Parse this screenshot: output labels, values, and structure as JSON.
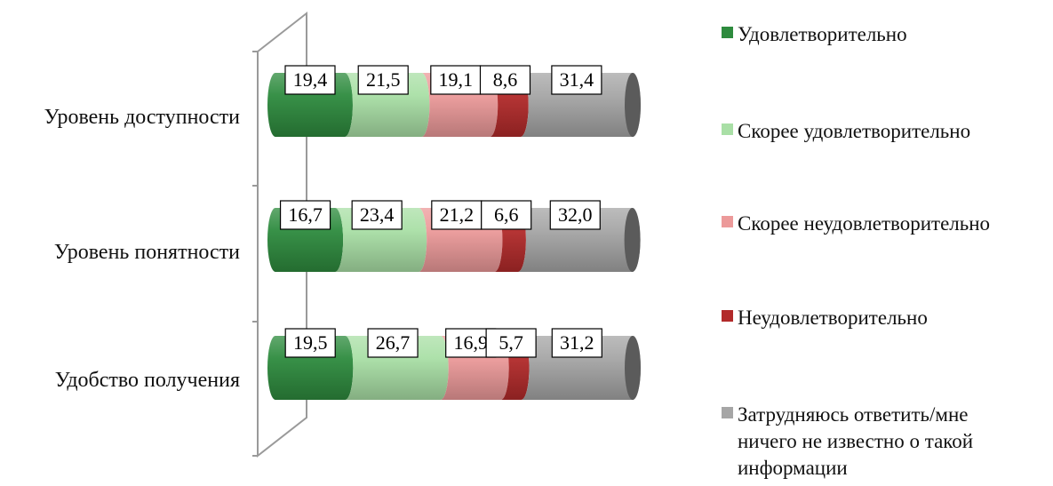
{
  "chart_data": {
    "type": "bar",
    "orientation": "horizontal",
    "stacked": true,
    "style": "3d-cylinder",
    "categories": [
      "Уровень доступности",
      "Уровень понятности",
      "Удобство получения"
    ],
    "series": [
      {
        "name": "Удовлетворительно",
        "color": "#2e8b3e",
        "values": [
          19.4,
          16.7,
          19.5
        ],
        "labels": [
          "19,4",
          "16,7",
          "19,5"
        ]
      },
      {
        "name": "Скорее удовлетворительно",
        "color": "#a9dfa6",
        "values": [
          21.5,
          23.4,
          26.7
        ],
        "labels": [
          "21,5",
          "23,4",
          "26,7"
        ]
      },
      {
        "name": "Скорее неудовлетворительно",
        "color": "#ec9a9a",
        "values": [
          19.1,
          21.2,
          16.9
        ],
        "labels": [
          "19,1",
          "21,2",
          "16,9"
        ]
      },
      {
        "name": "Неудовлетворительно",
        "color": "#b22a2a",
        "values": [
          8.6,
          6.6,
          5.7
        ],
        "labels": [
          "8,6",
          "6,6",
          "5,7"
        ]
      },
      {
        "name": "Затрудняюсь ответить/мне\nничего не известно о такой\nинформации",
        "color": "#a6a6a6",
        "values": [
          31.4,
          32.0,
          31.2
        ],
        "labels": [
          "31,4",
          "32,0",
          "31,2"
        ]
      }
    ],
    "xlim": [
      0,
      100
    ],
    "legend_position": "right",
    "grid": false
  }
}
